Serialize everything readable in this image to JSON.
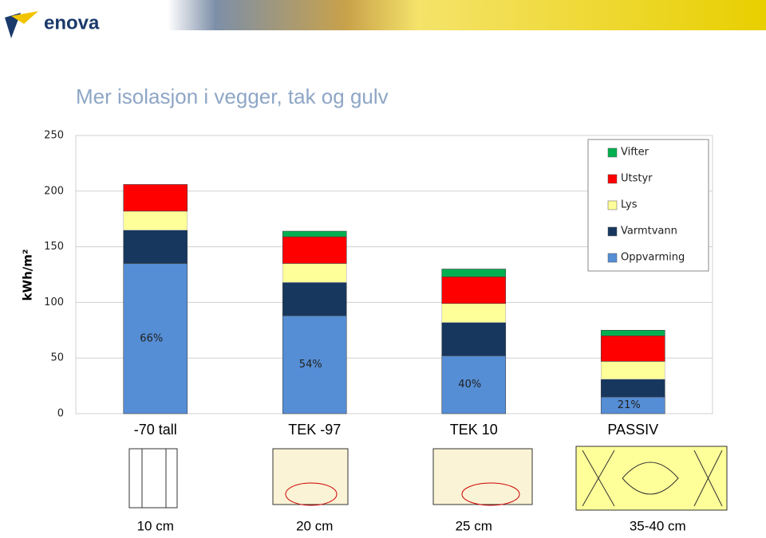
{
  "header": {
    "logo": "enova"
  },
  "chart_data": {
    "type": "bar",
    "stacked": true,
    "title": "Mer isolasjon i vegger, tak og gulv",
    "y_label": "kWh/m²",
    "categories": [
      "-70 tall",
      "TEK -97",
      "TEK 10",
      "PASSIV"
    ],
    "series": [
      {
        "name": "Oppvarming",
        "color": "#558ed5",
        "values": [
          135,
          88,
          52,
          15
        ]
      },
      {
        "name": "Varmtvann",
        "color": "#17375e",
        "values": [
          30,
          30,
          30,
          16
        ]
      },
      {
        "name": "Lys",
        "color": "#ffff99",
        "values": [
          17,
          17,
          17,
          16
        ]
      },
      {
        "name": "Utstyr",
        "color": "#ff0000",
        "values": [
          24,
          24,
          24,
          23
        ]
      },
      {
        "name": "Vifter",
        "color": "#00b050",
        "values": [
          0,
          5,
          7,
          5
        ]
      }
    ],
    "share_labels": [
      "66%",
      "54%",
      "40%",
      "21%"
    ],
    "ylim": [
      0,
      250
    ],
    "yticks": [
      0,
      50,
      100,
      150,
      200,
      250
    ],
    "grid": true,
    "legend": "top-right"
  },
  "insulation": [
    "10 cm",
    "20 cm",
    "25 cm",
    "35-40 cm"
  ]
}
